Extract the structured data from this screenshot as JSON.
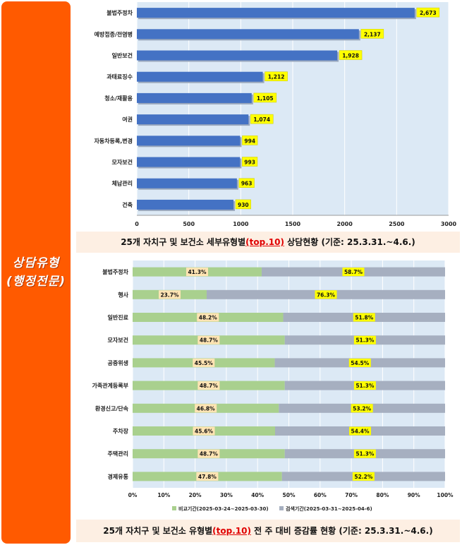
{
  "sidebar": {
    "line1": "상담유형",
    "line2": "(행정전문)"
  },
  "chart_data": [
    {
      "type": "bar",
      "orientation": "horizontal",
      "title": "",
      "categories": [
        "불법주정차",
        "예방접종/전염병",
        "일반보건",
        "과태료징수",
        "청소/재활용",
        "여권",
        "자동차등록,변경",
        "모자보건",
        "체납관리",
        "건축"
      ],
      "values": [
        2673,
        2137,
        1928,
        1212,
        1105,
        1074,
        994,
        993,
        963,
        930
      ],
      "value_labels": [
        "2,673",
        "2,137",
        "1,928",
        "1,212",
        "1,105",
        "1,074",
        "994",
        "993",
        "963",
        "930"
      ],
      "xlim": [
        0,
        3000
      ],
      "x_ticks": [
        "0",
        "500",
        "1000",
        "1500",
        "2000",
        "2500",
        "3000"
      ],
      "grid": true,
      "colors": {
        "bar": "#4472c4",
        "label_bg": "#ffff00",
        "plot_bg": "#dce9f5"
      }
    },
    {
      "type": "bar",
      "orientation": "horizontal",
      "stacked": "percent",
      "categories": [
        "불법주정차",
        "행사",
        "일반진료",
        "모자보건",
        "공중위생",
        "가족관계등록부",
        "환경신고/단속",
        "주차장",
        "주택관리",
        "경제유통"
      ],
      "series": [
        {
          "name": "비교기간(2025-03-24~2025-03-30)",
          "values": [
            41.3,
            23.7,
            48.2,
            48.7,
            45.5,
            48.7,
            46.8,
            45.6,
            48.7,
            47.8
          ],
          "labels": [
            "41.3%",
            "23.7%",
            "48.2%",
            "48.7%",
            "45.5%",
            "48.7%",
            "46.8%",
            "45.6%",
            "48.7%",
            "47.8%"
          ],
          "color": "#a9d08e",
          "label_bg": "#ffe4b3"
        },
        {
          "name": "검색기간(2025-03-31~2025-04-6)",
          "values": [
            58.7,
            76.3,
            51.8,
            51.3,
            54.5,
            51.3,
            53.2,
            54.4,
            51.3,
            52.2
          ],
          "labels": [
            "58.7%",
            "76.3%",
            "51.8%",
            "51.3%",
            "54.5%",
            "51.3%",
            "53.2%",
            "54.4%",
            "51.3%",
            "52.2%"
          ],
          "color": "#a6afc0",
          "label_bg": "#ffff00"
        }
      ],
      "xlim": [
        0,
        100
      ],
      "x_ticks": [
        "0%",
        "10%",
        "20%",
        "30%",
        "40%",
        "50%",
        "60%",
        "70%",
        "80%",
        "90%",
        "100%"
      ],
      "legend": "bottom",
      "grid": true,
      "colors": {
        "plot_bg": "#dce9f5"
      }
    }
  ],
  "captions": {
    "chart1": {
      "pre": "25개 자치구 및 보건소 세부유형별",
      "hl": "(top.10)",
      "post": " 상담현황  (기준: 25.3.31.~4.6.)"
    },
    "chart2": {
      "pre": "25개 자치구 및 보건소 유형별",
      "hl": "(top.10)",
      "post": " 전 주 대비 증감률 현황 (기준: 25.3.31.~4.6.)"
    }
  }
}
